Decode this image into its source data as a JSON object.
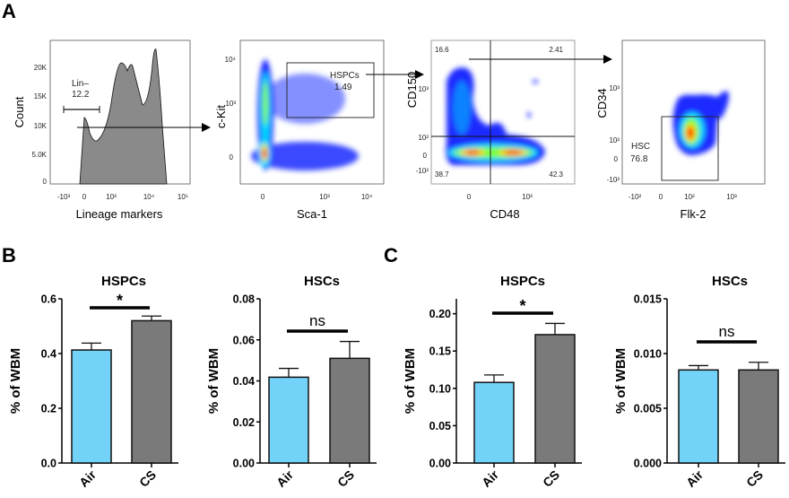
{
  "panels": {
    "a": "A",
    "b": "B",
    "c": "C"
  },
  "flow": {
    "hist": {
      "ylabel": "Count",
      "xlabel": "Lineage markers",
      "y_ticks": [
        "0",
        "5.0K",
        "10K",
        "15K",
        "20K"
      ],
      "x_ticks": [
        "-10³",
        "0",
        "10³",
        "10⁴",
        "10⁵"
      ],
      "gate_name": "Lin–",
      "gate_value": "12.2"
    },
    "scatter1": {
      "ylabel": "c-Kit",
      "xlabel": "Sca-1",
      "y_ticks": [
        "10⁴",
        "10³",
        "0"
      ],
      "x_ticks": [
        "0",
        "10³",
        "10⁴"
      ],
      "gate_name": "HSPCs",
      "gate_value": "1.49"
    },
    "scatter2": {
      "ylabel": "CD150",
      "xlabel": "CD48",
      "y_ticks": [
        "10³",
        "10²",
        "0",
        "-10²"
      ],
      "x_ticks": [
        "0",
        "10³"
      ],
      "quadrants": [
        "16.6",
        "2.41",
        "38.7",
        "42.3"
      ]
    },
    "scatter3": {
      "ylabel": "CD34",
      "xlabel": "Flk-2",
      "y_ticks": [
        "10³",
        "10²",
        "0",
        "-10²"
      ],
      "x_ticks": [
        "-10²",
        "0",
        "10²",
        "10³"
      ],
      "gate_name": "HSC",
      "gate_value": "76.8"
    }
  },
  "colors": {
    "air": "#72d2f8",
    "cs": "#7a7a7a"
  },
  "chart_data": [
    {
      "type": "bar",
      "panel": "B",
      "title": "HSPCs",
      "ylabel": "% of WBM",
      "categories": [
        "Air",
        "CS"
      ],
      "values": [
        0.413,
        0.52
      ],
      "errors": [
        0.025,
        0.017
      ],
      "ylim": [
        0,
        0.6
      ],
      "yticks": [
        "0.0",
        "0.2",
        "0.4",
        "0.6"
      ],
      "ytick_values": [
        0,
        0.2,
        0.4,
        0.6
      ],
      "significance": "*"
    },
    {
      "type": "bar",
      "panel": "B",
      "title": "HSCs",
      "ylabel": "% of WBM",
      "categories": [
        "Air",
        "CS"
      ],
      "values": [
        0.0418,
        0.051
      ],
      "errors": [
        0.0043,
        0.0082
      ],
      "ylim": [
        0,
        0.08
      ],
      "yticks": [
        "0.00",
        "0.02",
        "0.04",
        "0.06",
        "0.08"
      ],
      "ytick_values": [
        0,
        0.02,
        0.04,
        0.06,
        0.08
      ],
      "significance": "ns"
    },
    {
      "type": "bar",
      "panel": "C",
      "title": "HSPCs",
      "ylabel": "% of WBM",
      "categories": [
        "Air",
        "CS"
      ],
      "values": [
        0.108,
        0.172
      ],
      "errors": [
        0.01,
        0.015
      ],
      "ylim": [
        0,
        0.22
      ],
      "yticks": [
        "0.00",
        "0.05",
        "0.10",
        "0.15",
        "0.20"
      ],
      "ytick_values": [
        0,
        0.05,
        0.1,
        0.15,
        0.2
      ],
      "significance": "*"
    },
    {
      "type": "bar",
      "panel": "C",
      "title": "HSCs",
      "ylabel": "% of WBM",
      "categories": [
        "Air",
        "CS"
      ],
      "values": [
        0.0085,
        0.0085
      ],
      "errors": [
        0.0004,
        0.0007
      ],
      "ylim": [
        0,
        0.015
      ],
      "yticks": [
        "0.000",
        "0.005",
        "0.010",
        "0.015"
      ],
      "ytick_values": [
        0,
        0.005,
        0.01,
        0.015
      ],
      "significance": "ns"
    }
  ]
}
